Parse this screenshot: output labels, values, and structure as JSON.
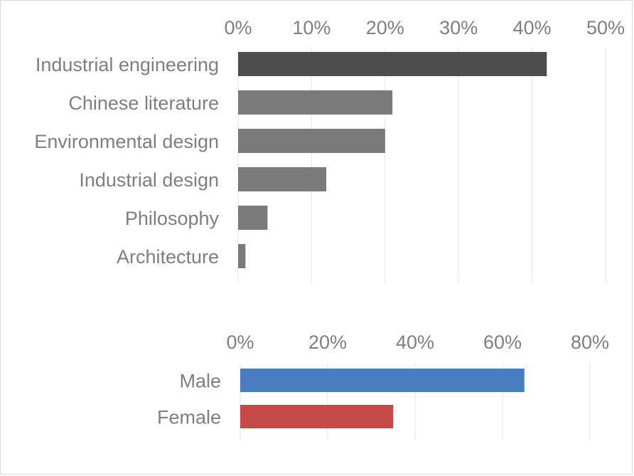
{
  "chart_data": [
    {
      "type": "bar",
      "orientation": "horizontal",
      "categories": [
        "Industrial engineering",
        "Chinese literature",
        "Environmental design",
        "Industrial design",
        "Philosophy",
        "Architecture"
      ],
      "values": [
        42,
        21,
        20,
        12,
        4,
        1
      ],
      "value_unit": "%",
      "xlim": [
        0,
        50
      ],
      "xticks": [
        "0%",
        "10%",
        "20%",
        "30%",
        "40%",
        "50%"
      ],
      "colors": [
        "#4d4d4d",
        "#7a7a7a",
        "#7a7a7a",
        "#7a7a7a",
        "#7a7a7a",
        "#7a7a7a"
      ],
      "axis_position": "top",
      "grid": true
    },
    {
      "type": "bar",
      "orientation": "horizontal",
      "categories": [
        "Male",
        "Female"
      ],
      "values": [
        65,
        35
      ],
      "value_unit": "%",
      "xlim": [
        0,
        80
      ],
      "xticks": [
        "0%",
        "20%",
        "40%",
        "60%",
        "80%"
      ],
      "colors": [
        "#4a7dc0",
        "#c44a4a"
      ],
      "axis_position": "top",
      "grid": true
    }
  ]
}
